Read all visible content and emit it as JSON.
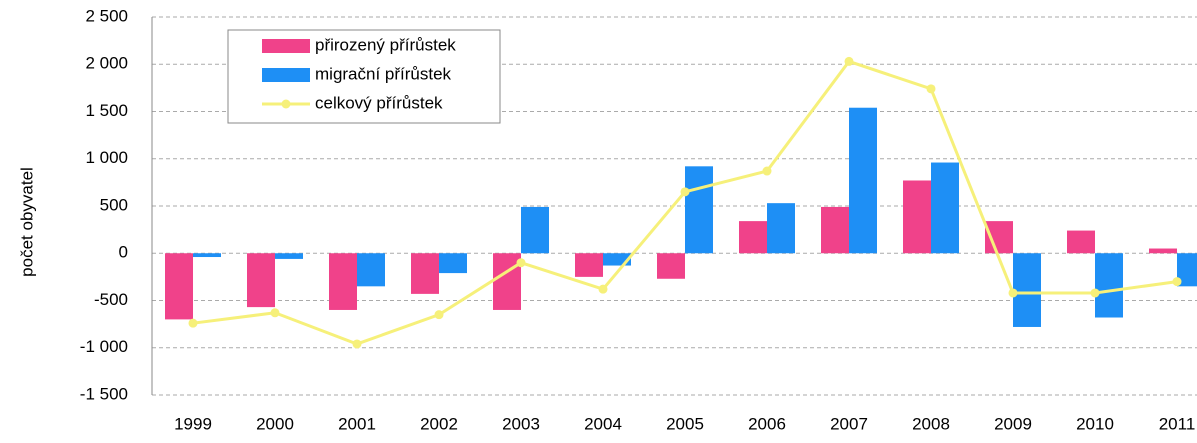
{
  "chart_data": {
    "type": "bar_line",
    "y_label": "počet obyvatel",
    "categories": [
      "1999",
      "2000",
      "2001",
      "2002",
      "2003",
      "2004",
      "2005",
      "2006",
      "2007",
      "2008",
      "2009",
      "2010",
      "2011"
    ],
    "series": [
      {
        "name": "přirozený přírůstek",
        "color": "#f0428a",
        "type": "bar",
        "values": [
          -700,
          -570,
          -600,
          -430,
          -600,
          -250,
          -270,
          340,
          490,
          770,
          340,
          240,
          50
        ]
      },
      {
        "name": "migrační přírůstek",
        "color": "#1e8ff5",
        "type": "bar",
        "values": [
          -40,
          -60,
          -350,
          -210,
          490,
          -130,
          920,
          530,
          1540,
          960,
          -780,
          -680,
          -350
        ]
      },
      {
        "name": "celkový přírůstek",
        "color": "#f6f07a",
        "type": "line",
        "values": [
          -740,
          -630,
          -960,
          -650,
          -100,
          -380,
          650,
          870,
          2030,
          1740,
          -420,
          -420,
          -300
        ]
      }
    ],
    "ylim": [
      -1500,
      2500
    ],
    "yticks": [
      {
        "value": -1500,
        "label": "-1 500"
      },
      {
        "value": -1000,
        "label": "-1 000"
      },
      -500,
      0,
      500,
      {
        "value": 1000,
        "label": "1 000"
      },
      {
        "value": 1500,
        "label": "1 500"
      },
      {
        "value": 2000,
        "label": "2 000"
      },
      {
        "value": 2500,
        "label": "2 500"
      }
    ],
    "grid": true
  }
}
